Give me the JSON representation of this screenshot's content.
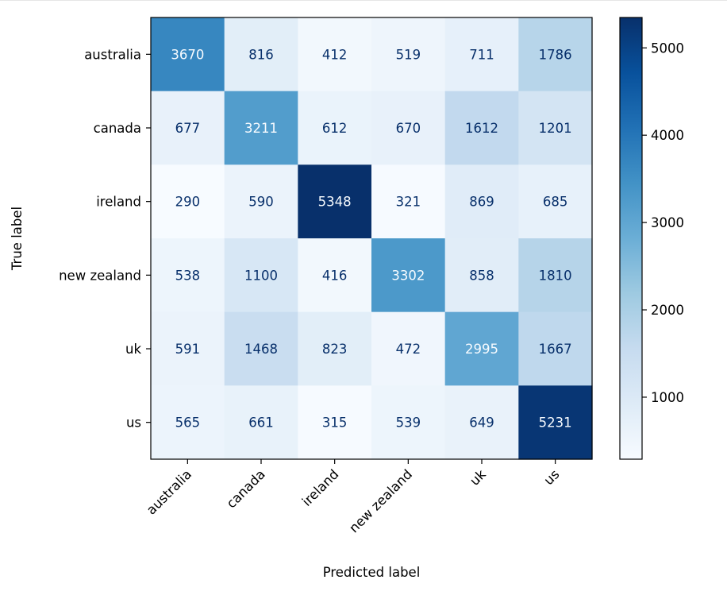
{
  "chart_data": {
    "type": "heatmap",
    "title": "",
    "xlabel": "Predicted label",
    "ylabel": "True label",
    "x_categories": [
      "australia",
      "canada",
      "ireland",
      "new zealand",
      "uk",
      "us"
    ],
    "y_categories": [
      "australia",
      "canada",
      "ireland",
      "new zealand",
      "uk",
      "us"
    ],
    "values": [
      [
        3670,
        816,
        412,
        519,
        711,
        1786
      ],
      [
        677,
        3211,
        612,
        670,
        1612,
        1201
      ],
      [
        290,
        590,
        5348,
        321,
        869,
        685
      ],
      [
        538,
        1100,
        416,
        3302,
        858,
        1810
      ],
      [
        591,
        1468,
        823,
        472,
        2995,
        1667
      ],
      [
        565,
        661,
        315,
        539,
        649,
        5231
      ]
    ],
    "colormap": "Blues",
    "color_range": [
      290,
      5348
    ],
    "colorbar_ticks": [
      1000,
      2000,
      3000,
      4000,
      5000
    ]
  }
}
